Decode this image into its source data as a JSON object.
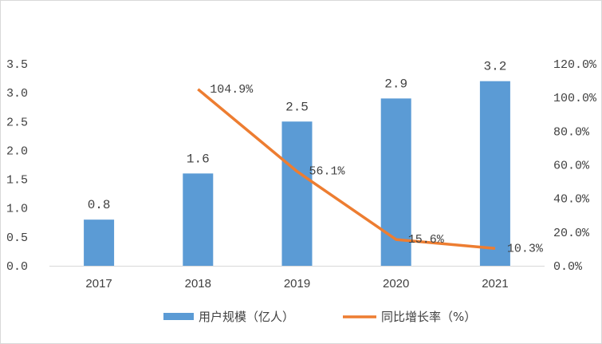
{
  "chart_data": {
    "type": "bar",
    "categories": [
      "2017",
      "2018",
      "2019",
      "2020",
      "2021"
    ],
    "series": [
      {
        "name": "用户规模（亿人）",
        "type": "bar",
        "axis": "left",
        "color": "#5b9bd5",
        "values": [
          0.8,
          1.6,
          2.5,
          2.9,
          3.2
        ],
        "labels": [
          "0.8",
          "1.6",
          "2.5",
          "2.9",
          "3.2"
        ]
      },
      {
        "name": "同比增长率（%）",
        "type": "line",
        "axis": "right",
        "color": "#ed7d31",
        "values": [
          null,
          104.9,
          56.1,
          15.6,
          10.3
        ],
        "labels": [
          "",
          "104.9%",
          "56.1%",
          "15.6%",
          "10.3%"
        ]
      }
    ],
    "y_left": {
      "min": 0,
      "max": 3.5,
      "step": 0.5,
      "tick_labels": [
        "0.0",
        "0.5",
        "1.0",
        "1.5",
        "2.0",
        "2.5",
        "3.0",
        "3.5"
      ]
    },
    "y_right": {
      "min": 0,
      "max": 120,
      "step": 20,
      "tick_labels": [
        "0.0%",
        "20.0%",
        "40.0%",
        "60.0%",
        "80.0%",
        "100.0%",
        "120.0%"
      ]
    },
    "grid": false,
    "legend": "bottom",
    "axis_line_color": "#d9d9d9"
  }
}
